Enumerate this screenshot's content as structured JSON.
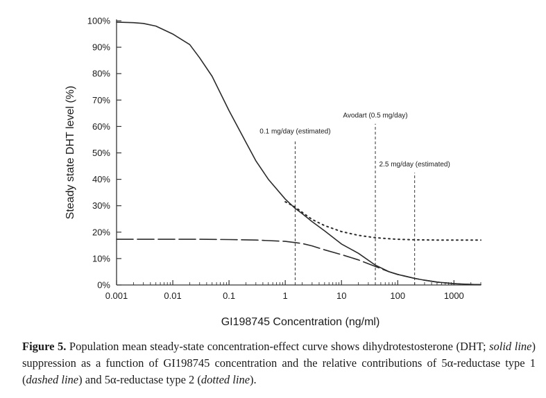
{
  "chart_data": {
    "type": "line",
    "xlabel": "GI198745 Concentration (ng/ml)",
    "ylabel": "Steady state DHT level (%)",
    "xscale": "log",
    "xlim": [
      0.001,
      3000
    ],
    "ylim": [
      0,
      100
    ],
    "grid": false,
    "legend": "none",
    "x_ticks": [
      {
        "value": 0.001,
        "label": "0.001"
      },
      {
        "value": 0.01,
        "label": "0.01"
      },
      {
        "value": 0.1,
        "label": "0.1"
      },
      {
        "value": 1,
        "label": "1"
      },
      {
        "value": 10,
        "label": "10"
      },
      {
        "value": 100,
        "label": "100"
      },
      {
        "value": 1000,
        "label": "1000"
      }
    ],
    "y_ticks": [
      {
        "value": 0,
        "label": "0%"
      },
      {
        "value": 10,
        "label": "10%"
      },
      {
        "value": 20,
        "label": "20%"
      },
      {
        "value": 30,
        "label": "30%"
      },
      {
        "value": 40,
        "label": "40%"
      },
      {
        "value": 50,
        "label": "50%"
      },
      {
        "value": 60,
        "label": "60%"
      },
      {
        "value": 70,
        "label": "70%"
      },
      {
        "value": 80,
        "label": "80%"
      },
      {
        "value": 90,
        "label": "90%"
      },
      {
        "value": 100,
        "label": "100%"
      }
    ],
    "series": [
      {
        "style": "solid",
        "x": [
          0.001,
          0.002,
          0.003,
          0.005,
          0.01,
          0.02,
          0.03,
          0.05,
          0.1,
          0.2,
          0.3,
          0.5,
          1,
          1.5,
          2,
          3,
          5,
          10,
          20,
          40,
          70,
          100,
          200,
          300,
          500,
          1000,
          2000,
          3000
        ],
        "y": [
          99.5,
          99.3,
          99,
          98,
          95,
          91,
          86,
          79,
          66,
          54,
          47,
          40,
          32.5,
          29,
          27,
          24,
          20.5,
          15.5,
          12,
          7.5,
          5,
          4,
          2.5,
          1.8,
          1.1,
          0.5,
          0.2,
          0.1
        ]
      },
      {
        "style": "dashed",
        "x": [
          0.001,
          0.003,
          0.01,
          0.03,
          0.1,
          0.3,
          1,
          2,
          3,
          5,
          10,
          20,
          40,
          70,
          100,
          200,
          300,
          500,
          1000,
          2000,
          3000
        ],
        "y": [
          17.3,
          17.3,
          17.3,
          17.3,
          17.2,
          17,
          16.5,
          15.7,
          14.8,
          13.3,
          11.5,
          9.5,
          7,
          5,
          4,
          2.5,
          1.8,
          1.1,
          0.5,
          0.2,
          0.1
        ]
      },
      {
        "style": "dotted",
        "x": [
          1,
          1.5,
          2,
          3,
          5,
          10,
          20,
          40,
          70,
          100,
          200,
          300,
          500,
          1000,
          3000
        ],
        "y": [
          31.5,
          29.5,
          27.5,
          24.8,
          22.5,
          20.2,
          18.8,
          17.9,
          17.5,
          17.3,
          17.1,
          17.05,
          17,
          17,
          17
        ]
      }
    ],
    "reference_lines": [
      {
        "x": 1.5,
        "y_top": 55,
        "label": "0.1 mg/day (estimated)"
      },
      {
        "x": 40,
        "y_top": 61,
        "label": "Avodart (0.5 mg/day)"
      },
      {
        "x": 200,
        "y_top": 42.5,
        "label": "2.5 mg/day (estimated)"
      }
    ]
  },
  "caption": {
    "figure_label": "Figure 5.",
    "part1": " Population mean steady-state concentration-effect curve shows dihydrotestosterone (DHT; ",
    "italic1": "solid line",
    "part2": ") suppression as a function of GI198745 concentration and the relative contributions of 5α-reductase type 1 (",
    "italic2": "dashed line",
    "part3": ") and 5α-reductase type 2 (",
    "italic3": "dotted line",
    "part4": ")."
  }
}
